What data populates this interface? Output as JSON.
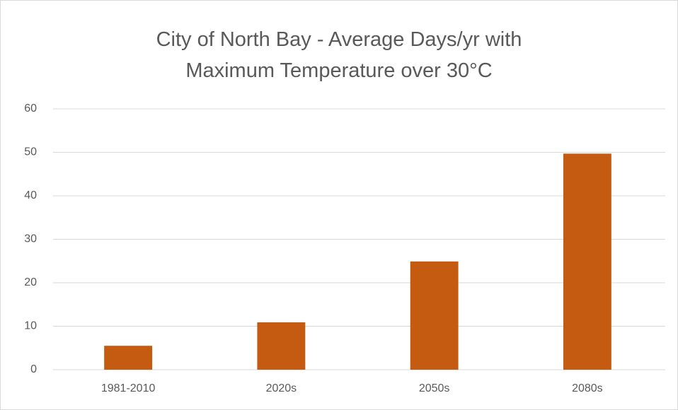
{
  "chart_data": {
    "type": "bar",
    "title": "City of North Bay - Average Days/yr with Maximum Temperature over 30°C",
    "categories": [
      "1981-2010",
      "2020s",
      "2050s",
      "2080s"
    ],
    "values": [
      5.5,
      10.9,
      24.9,
      49.7
    ],
    "color": "#c55a11",
    "ylim": [
      0,
      60
    ],
    "yticks": [
      0,
      10,
      20,
      30,
      40,
      50,
      60
    ],
    "grid": true
  }
}
